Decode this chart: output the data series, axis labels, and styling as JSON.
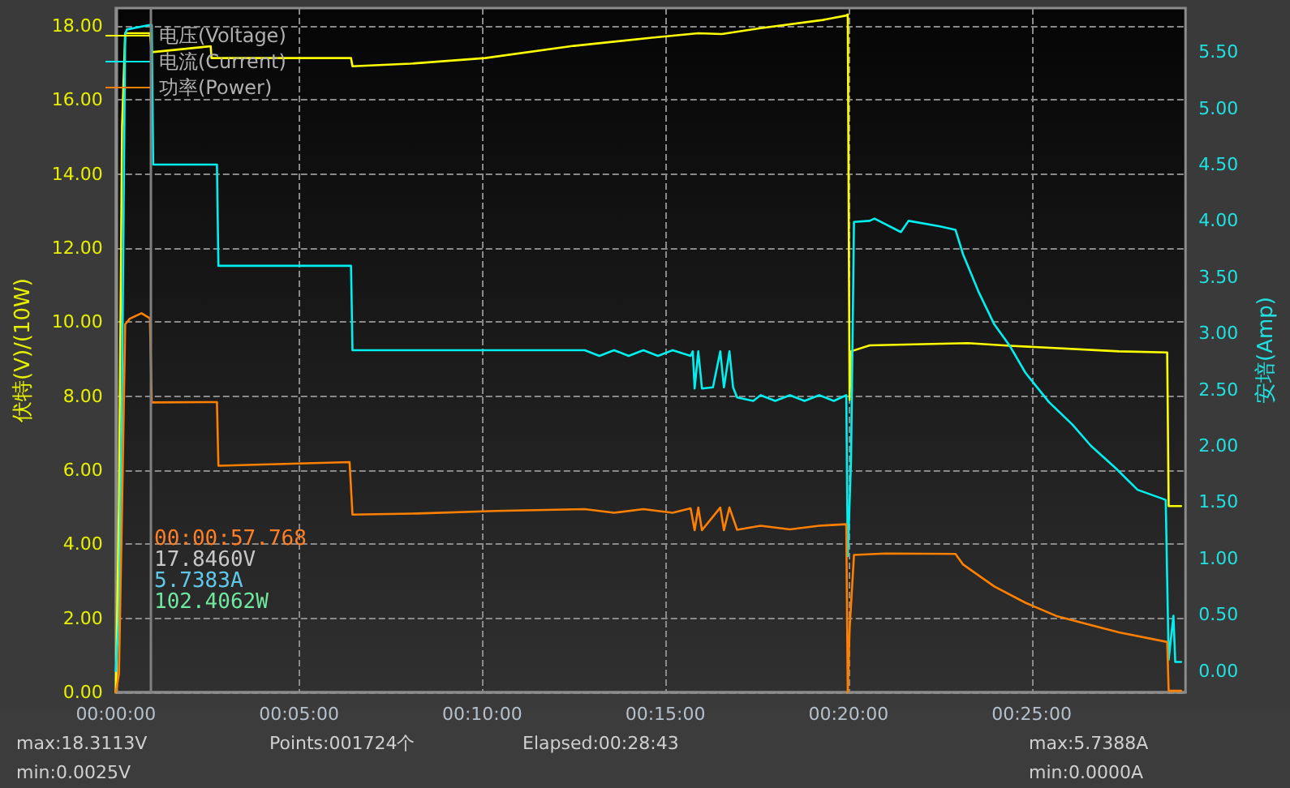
{
  "chart_data": {
    "type": "line",
    "ylabel": "伏特(V)/(10W)",
    "y2label": "安培(Amp)",
    "xlim": [
      0,
      29.2
    ],
    "xticks": [
      {
        "value": 0,
        "label": "00:00:00"
      },
      {
        "value": 5,
        "label": "00:05:00"
      },
      {
        "value": 10,
        "label": "00:10:00"
      },
      {
        "value": 15,
        "label": "00:15:00"
      },
      {
        "value": 20,
        "label": "00:20:00"
      },
      {
        "value": 25,
        "label": "00:25:00"
      }
    ],
    "ylim": [
      0,
      18.48
    ],
    "yticks": [
      {
        "value": 0,
        "label": "0.00"
      },
      {
        "value": 2,
        "label": "2.00"
      },
      {
        "value": 4,
        "label": "4.00"
      },
      {
        "value": 6,
        "label": "6.00"
      },
      {
        "value": 8,
        "label": "8.00"
      },
      {
        "value": 10,
        "label": "10.00"
      },
      {
        "value": 12,
        "label": "12.00"
      },
      {
        "value": 14,
        "label": "14.00"
      },
      {
        "value": 16,
        "label": "16.00"
      },
      {
        "value": 18,
        "label": "18.00"
      }
    ],
    "y2lim": [
      -0.19,
      5.89
    ],
    "y2ticks": [
      {
        "value": 0,
        "label": "0.00"
      },
      {
        "value": 0.5,
        "label": "0.50"
      },
      {
        "value": 1,
        "label": "1.00"
      },
      {
        "value": 1.5,
        "label": "1.50"
      },
      {
        "value": 2,
        "label": "2.00"
      },
      {
        "value": 2.5,
        "label": "2.50"
      },
      {
        "value": 3,
        "label": "3.00"
      },
      {
        "value": 3.5,
        "label": "3.50"
      },
      {
        "value": 4,
        "label": "4.00"
      },
      {
        "value": 4.5,
        "label": "4.50"
      },
      {
        "value": 5,
        "label": "5.00"
      },
      {
        "value": 5.5,
        "label": "5.50"
      }
    ],
    "grid": true,
    "legend": "top left",
    "marker": "none",
    "line_style": "solid",
    "series": [
      {
        "name": "电压(Voltage)",
        "color": "#ffff00",
        "x": [
          0,
          0.085,
          0.17,
          0.255,
          0.93,
          0.98,
          2.3,
          2.59,
          2.61,
          6.42,
          6.46,
          8.04,
          10.08,
          12.5,
          14.63,
          15.9,
          16.54,
          17.6,
          19.3,
          19.94,
          19.98,
          20.03,
          20.07,
          20.58,
          23.26,
          24.4,
          27.38,
          28.7,
          28.74,
          29.08
        ],
        "values": [
          0,
          5,
          15.3,
          17.8,
          17.8,
          17.29,
          17.42,
          17.45,
          17.13,
          17.13,
          16.91,
          16.98,
          17.13,
          17.46,
          17.68,
          17.8,
          17.78,
          17.94,
          18.16,
          18.28,
          18.31,
          7.9,
          9.21,
          9.37,
          9.43,
          9.36,
          9.21,
          9.18,
          5.03,
          5.03
        ]
      },
      {
        "name": "电流(Current)",
        "color": "#00f0f0",
        "axis": "y2",
        "x": [
          0,
          0.085,
          0.17,
          0.255,
          0.3,
          0.93,
          0.98,
          1.02,
          2.76,
          2.8,
          6.42,
          6.46,
          12.8,
          13.2,
          13.6,
          14.0,
          14.4,
          14.8,
          15.2,
          15.69,
          15.75,
          15.8,
          15.9,
          16.0,
          16.3,
          16.5,
          16.6,
          16.75,
          16.85,
          16.96,
          17.4,
          17.6,
          18.0,
          18.4,
          18.8,
          19.2,
          19.6,
          19.94,
          19.98,
          20.07,
          20.15,
          20.58,
          20.71,
          21.43,
          21.64,
          22.5,
          22.92,
          23.13,
          23.55,
          23.98,
          24.4,
          24.83,
          25.47,
          26.11,
          26.62,
          27.3,
          27.89,
          28.66,
          28.74,
          28.87,
          28.92,
          29.08
        ],
        "values": [
          0,
          0.5,
          2.5,
          5.66,
          5.7,
          5.74,
          5.74,
          4.5,
          4.5,
          3.6,
          3.6,
          2.85,
          2.85,
          2.8,
          2.85,
          2.8,
          2.85,
          2.8,
          2.85,
          2.8,
          2.84,
          2.51,
          2.84,
          2.51,
          2.52,
          2.84,
          2.52,
          2.84,
          2.52,
          2.43,
          2.4,
          2.45,
          2.4,
          2.45,
          2.4,
          2.45,
          2.4,
          2.45,
          1.02,
          1.88,
          3.99,
          4.0,
          4.02,
          3.9,
          4.0,
          3.95,
          3.92,
          3.7,
          3.37,
          3.08,
          2.89,
          2.65,
          2.39,
          2.19,
          2.0,
          1.8,
          1.61,
          1.52,
          0.1,
          0.49,
          0.08,
          0.08
        ]
      },
      {
        "name": "功率(Power)",
        "color": "#ff8000",
        "x": [
          0,
          0.085,
          0.17,
          0.255,
          0.38,
          0.7,
          0.93,
          0.98,
          2.76,
          2.8,
          6.38,
          6.46,
          8.25,
          10.37,
          12.8,
          13.6,
          14.4,
          15.2,
          15.69,
          15.8,
          15.9,
          16.0,
          16.5,
          16.6,
          16.75,
          16.96,
          17.6,
          18.4,
          19.2,
          19.94,
          19.98,
          20.03,
          20.15,
          21.0,
          22.92,
          23.13,
          23.98,
          24.83,
          25.68,
          26.53,
          27.38,
          28.7,
          28.74,
          29.08
        ],
        "values": [
          0,
          0.5,
          5,
          9.94,
          10.09,
          10.24,
          10.1,
          7.83,
          7.84,
          6.12,
          6.22,
          4.8,
          4.83,
          4.9,
          4.95,
          4.85,
          4.95,
          4.85,
          4.97,
          4.38,
          4.99,
          4.38,
          4.99,
          4.38,
          4.99,
          4.39,
          4.5,
          4.4,
          4.5,
          4.54,
          0,
          1.7,
          3.71,
          3.75,
          3.74,
          3.45,
          2.86,
          2.42,
          2.06,
          1.84,
          1.62,
          1.36,
          0.04,
          0.04
        ]
      }
    ],
    "ref_lines": [
      {
        "axis": "x",
        "value": 0.963,
        "color": "#808080"
      }
    ],
    "annotations": [
      "00:00:57.768",
      "17.8460V",
      "5.7383A",
      "102.4062W",
      "max:18.3113V",
      "min:0.0025V",
      "Points:001724个",
      "Elapsed:00:28:43",
      "max:5.7388A",
      "min:0.0000A"
    ]
  }
}
